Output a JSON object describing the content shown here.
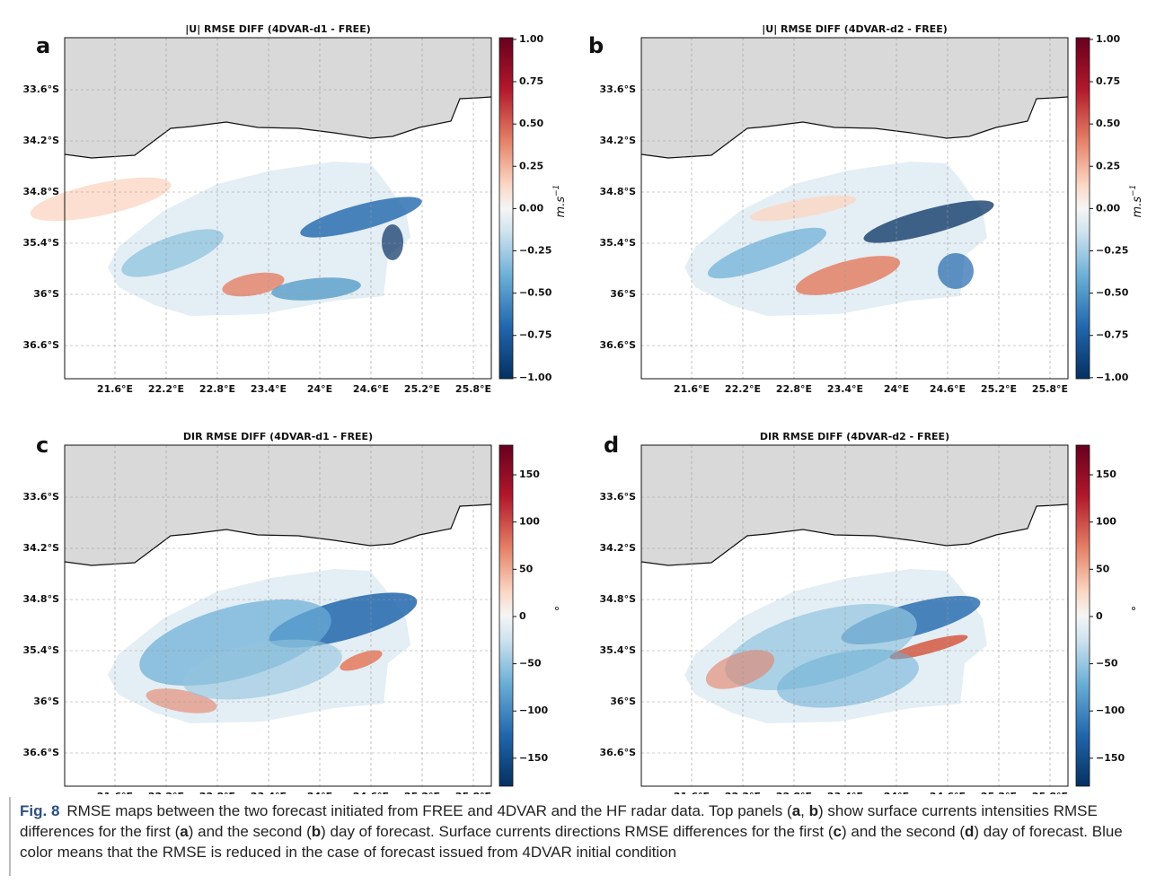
{
  "figure": {
    "panels": [
      {
        "letter": "a",
        "title": "|U| RMSE DIFF (4DVAR-d1 - FREE)"
      },
      {
        "letter": "b",
        "title": "|U| RMSE DIFF (4DVAR-d2 - FREE)"
      },
      {
        "letter": "c",
        "title": "DIR RMSE DIFF (4DVAR-d1 - FREE)"
      },
      {
        "letter": "d",
        "title": "DIR RMSE DIFF (4DVAR-d2 - FREE)"
      }
    ],
    "lat_labels": [
      "33.6°S",
      "34.2°S",
      "34.8°S",
      "35.4°S",
      "36°S",
      "36.6°S"
    ],
    "lon_labels": [
      "21.6°E",
      "22.2°E",
      "22.8°E",
      "23.4°E",
      "24°E",
      "24.6°E",
      "25.2°E",
      "25.8°E"
    ],
    "colorbars": [
      {
        "ticks": [
          "1.00",
          "0.75",
          "0.50",
          "0.25",
          "0.00",
          "−0.25",
          "−0.50",
          "−0.75",
          "−1.00"
        ],
        "unit": "m.s",
        "unit_superscript": "−1"
      },
      {
        "ticks": [
          "150",
          "100",
          "50",
          "0",
          "−50",
          "−100",
          "−150"
        ],
        "unit": "°"
      }
    ]
  },
  "caption": {
    "label": "Fig. 8",
    "segments": [
      "RMSE maps between the two forecast initiated from FREE and 4DVAR and the HF radar data. Top panels (",
      "a",
      ", ",
      "b",
      ") show surface currents intensities RMSE differences for the first (",
      "a",
      ") and the second (",
      "b",
      ") day of forecast. Surface currents directions RMSE differences for the first (",
      "c",
      ") and the second (",
      "d",
      ") day of forecast. Blue color means that the RMSE is reduced in the case of forecast issued from 4DVAR initial condition"
    ]
  }
}
